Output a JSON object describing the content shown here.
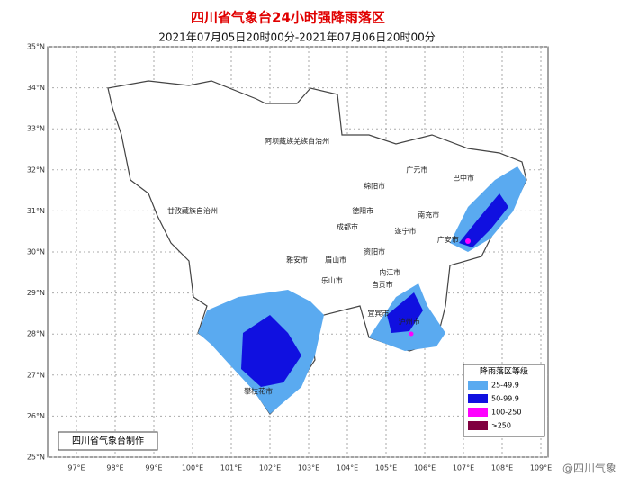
{
  "header": {
    "title": "四川省气象台24小时强降雨落区",
    "subtitle": "2021年07月05日20时00分-2021年07月06日20时00分"
  },
  "map": {
    "lat_ticks": [
      {
        "value": 35,
        "label": "35°N"
      },
      {
        "value": 34,
        "label": "34°N"
      },
      {
        "value": 33,
        "label": "33°N"
      },
      {
        "value": 32,
        "label": "32°N"
      },
      {
        "value": 31,
        "label": "31°N"
      },
      {
        "value": 30,
        "label": "30°N"
      },
      {
        "value": 29,
        "label": "29°N"
      },
      {
        "value": 28,
        "label": "28°N"
      },
      {
        "value": 27,
        "label": "27°N"
      },
      {
        "value": 26,
        "label": "26°N"
      },
      {
        "value": 25,
        "label": "25°N"
      }
    ],
    "lon_ticks": [
      {
        "value": 97,
        "label": "97°E"
      },
      {
        "value": 98,
        "label": "98°E"
      },
      {
        "value": 99,
        "label": "99°E"
      },
      {
        "value": 100,
        "label": "100°E"
      },
      {
        "value": 101,
        "label": "101°E"
      },
      {
        "value": 102,
        "label": "102°E"
      },
      {
        "value": 103,
        "label": "103°E"
      },
      {
        "value": 104,
        "label": "104°E"
      },
      {
        "value": 105,
        "label": "105°E"
      },
      {
        "value": 106,
        "label": "106°E"
      },
      {
        "value": 107,
        "label": "107°E"
      },
      {
        "value": 108,
        "label": "108°E"
      },
      {
        "value": 109,
        "label": "109°E"
      }
    ],
    "places": [
      {
        "name": "阿坝藏族羌族自治州",
        "lon": 102.7,
        "lat": 32.7
      },
      {
        "name": "甘孜藏族自治州",
        "lon": 100.0,
        "lat": 31.0
      },
      {
        "name": "广元市",
        "lon": 105.8,
        "lat": 32.0
      },
      {
        "name": "巴中市",
        "lon": 107.0,
        "lat": 31.8
      },
      {
        "name": "绵阳市",
        "lon": 104.7,
        "lat": 31.6
      },
      {
        "name": "德阳市",
        "lon": 104.4,
        "lat": 31.0
      },
      {
        "name": "南充市",
        "lon": 106.1,
        "lat": 30.9
      },
      {
        "name": "成都市",
        "lon": 104.0,
        "lat": 30.6
      },
      {
        "name": "遂宁市",
        "lon": 105.5,
        "lat": 30.5
      },
      {
        "name": "广安市",
        "lon": 106.6,
        "lat": 30.3
      },
      {
        "name": "资阳市",
        "lon": 104.7,
        "lat": 30.0
      },
      {
        "name": "雅安市",
        "lon": 102.7,
        "lat": 29.8
      },
      {
        "name": "眉山市",
        "lon": 103.7,
        "lat": 29.8
      },
      {
        "name": "内江市",
        "lon": 105.1,
        "lat": 29.5
      },
      {
        "name": "乐山市",
        "lon": 103.6,
        "lat": 29.3
      },
      {
        "name": "自贡市",
        "lon": 104.9,
        "lat": 29.2
      },
      {
        "name": "宜宾市",
        "lon": 104.8,
        "lat": 28.5
      },
      {
        "name": "泸州市",
        "lon": 105.6,
        "lat": 28.3
      },
      {
        "name": "攀枝花市",
        "lon": 101.7,
        "lat": 26.6
      }
    ]
  },
  "legend": {
    "title": "降雨落区等级",
    "items": [
      {
        "label": "25-49.9",
        "color": "#5aaaf0"
      },
      {
        "label": "50-99.9",
        "color": "#1010e0"
      },
      {
        "label": "100-250",
        "color": "#ff00ff"
      },
      {
        "label": ">250",
        "color": "#800040"
      }
    ]
  },
  "footer": {
    "credit": "四川省气象台制作",
    "watermark": "@四川气象"
  }
}
